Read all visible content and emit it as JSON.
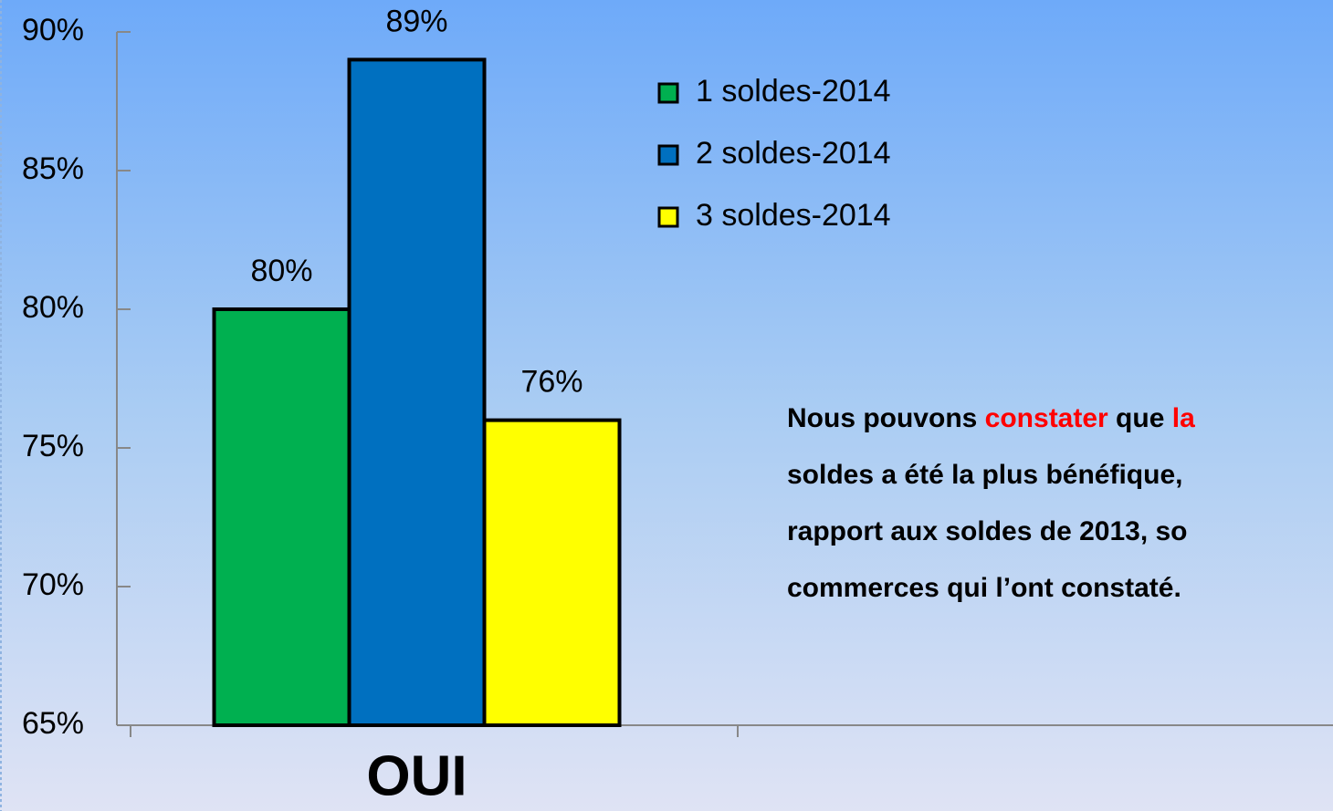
{
  "chart_data": {
    "type": "bar",
    "categories": [
      "OUI"
    ],
    "series": [
      {
        "name": "1 soldes-2014",
        "color": "#00b050",
        "values": [
          80
        ],
        "value_labels": [
          "80%"
        ]
      },
      {
        "name": "2 soldes-2014",
        "color": "#0070c0",
        "values": [
          89
        ],
        "value_labels": [
          "89%"
        ]
      },
      {
        "name": "3 soldes-2014",
        "color": "#ffff00",
        "values": [
          76
        ],
        "value_labels": [
          "76%"
        ]
      }
    ],
    "ylim": [
      65,
      90
    ],
    "yticks": [
      {
        "value": 65,
        "label": "65%"
      },
      {
        "value": 70,
        "label": "70%"
      },
      {
        "value": 75,
        "label": "75%"
      },
      {
        "value": 80,
        "label": "80%"
      },
      {
        "value": 85,
        "label": "85%"
      },
      {
        "value": 90,
        "label": "90%"
      }
    ],
    "grid": false,
    "legend": "top-right",
    "annotation": {
      "lines": [
        [
          {
            "text": "Nous pouvons "
          },
          {
            "text": "constater",
            "color": "#ff0000"
          },
          {
            "text": " que "
          },
          {
            "text": "la",
            "color": "#ff0000"
          }
        ],
        [
          {
            "text": "soldes a été la plus bénéfique,"
          }
        ],
        [
          {
            "text": "rapport aux soldes de 2013, so"
          }
        ],
        [
          {
            "text": "commerces qui l’ont constaté."
          }
        ]
      ]
    }
  }
}
